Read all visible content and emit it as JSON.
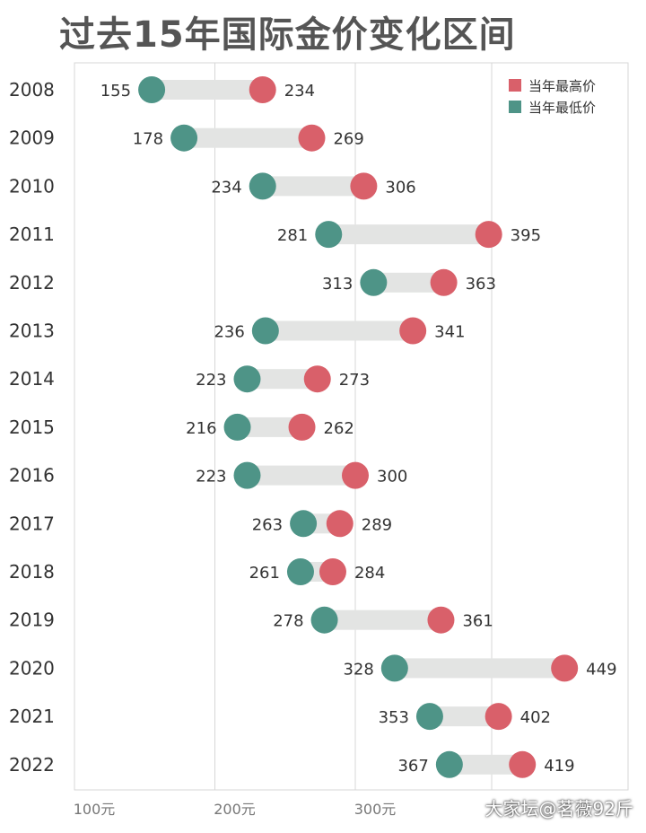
{
  "title": "过去15年国际金价变化区间",
  "watermark": "大家坛@茗薇92斤",
  "colors": {
    "high": "#d9606a",
    "low": "#4e9487",
    "bar": "#e3e4e3",
    "grid": "#d7d7d7",
    "text": "#333333",
    "axisText": "#777777"
  },
  "chart_data": {
    "type": "dumbbell",
    "title": "过去15年国际金价变化区间",
    "categories": [
      "2008",
      "2009",
      "2010",
      "2011",
      "2012",
      "2013",
      "2014",
      "2015",
      "2016",
      "2017",
      "2018",
      "2019",
      "2020",
      "2021",
      "2022"
    ],
    "series": [
      {
        "name": "当年最低价",
        "values": [
          155,
          178,
          234,
          281,
          313,
          236,
          223,
          216,
          223,
          263,
          261,
          278,
          328,
          353,
          367
        ]
      },
      {
        "name": "当年最高价",
        "values": [
          234,
          269,
          306,
          395,
          363,
          341,
          273,
          262,
          300,
          289,
          284,
          361,
          449,
          402,
          419
        ]
      }
    ],
    "xticks": [
      100,
      200,
      300
    ],
    "xtick_labels": [
      "100元",
      "200元",
      "300元"
    ],
    "xlim": [
      100,
      400
    ],
    "legend": [
      {
        "label": "当年最高价",
        "key": "high"
      },
      {
        "label": "当年最低价",
        "key": "low"
      }
    ],
    "legend_position": "top-right",
    "grid": true
  }
}
